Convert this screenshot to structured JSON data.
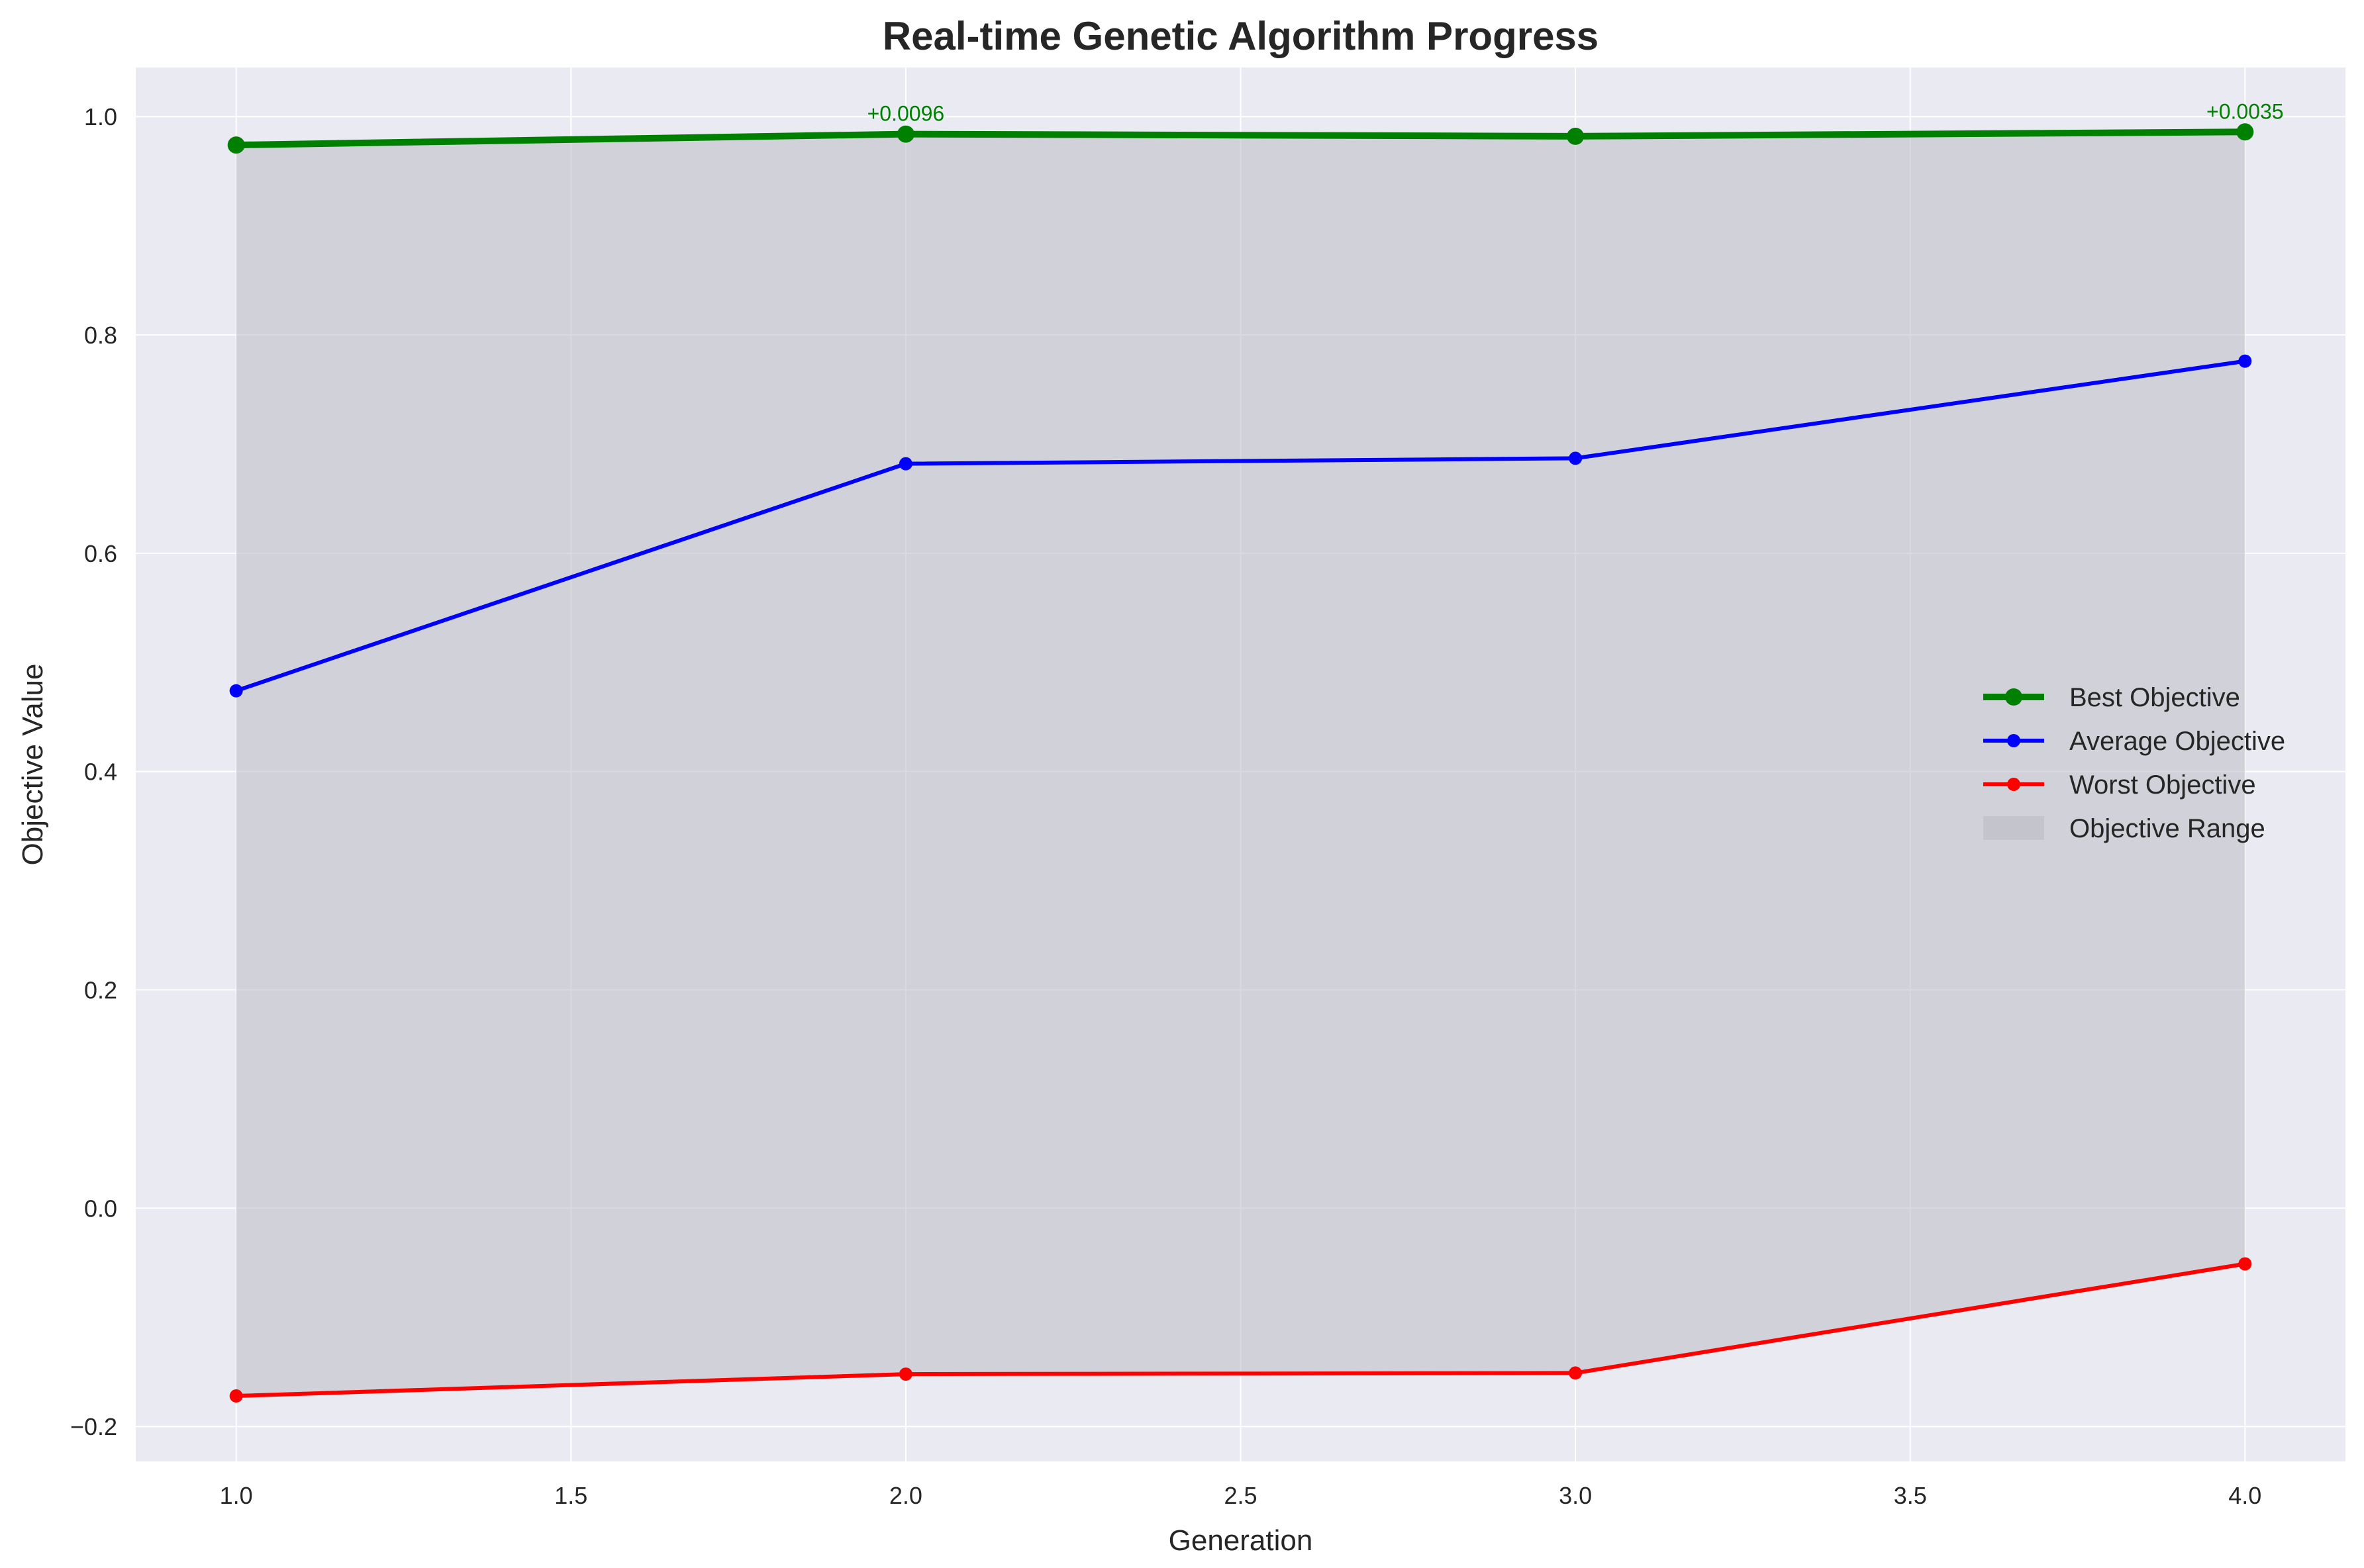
{
  "chart_data": {
    "type": "line",
    "title": "Real-time Genetic Algorithm Progress",
    "xlabel": "Generation",
    "ylabel": "Objective Value",
    "xlim": [
      0.85,
      4.15
    ],
    "ylim": [
      -0.232,
      1.045
    ],
    "xticks": [
      1.0,
      1.5,
      2.0,
      2.5,
      3.0,
      3.5,
      4.0
    ],
    "xtick_labels": [
      "1.0",
      "1.5",
      "2.0",
      "2.5",
      "3.0",
      "3.5",
      "4.0"
    ],
    "yticks": [
      -0.2,
      0.0,
      0.2,
      0.4,
      0.6,
      0.8,
      1.0
    ],
    "ytick_labels": [
      "−0.2",
      "0.0",
      "0.2",
      "0.4",
      "0.6",
      "0.8",
      "1.0"
    ],
    "grid": true,
    "legend_position": "center-right",
    "x": [
      1,
      2,
      3,
      4
    ],
    "series": [
      {
        "name": "Best Objective",
        "values": [
          0.974,
          0.984,
          0.982,
          0.986
        ],
        "color": "#008000"
      },
      {
        "name": "Average Objective",
        "values": [
          0.474,
          0.682,
          0.687,
          0.776
        ],
        "color": "#0000ff"
      },
      {
        "name": "Worst Objective",
        "values": [
          -0.172,
          -0.152,
          -0.151,
          -0.051
        ],
        "color": "#ff0000"
      }
    ],
    "range_band": {
      "name": "Objective Range",
      "color": "#c0c0c8"
    },
    "annotations": [
      {
        "x": 2,
        "y": 0.984,
        "text": "+0.0096"
      },
      {
        "x": 4,
        "y": 0.986,
        "text": "+0.0035"
      }
    ]
  }
}
